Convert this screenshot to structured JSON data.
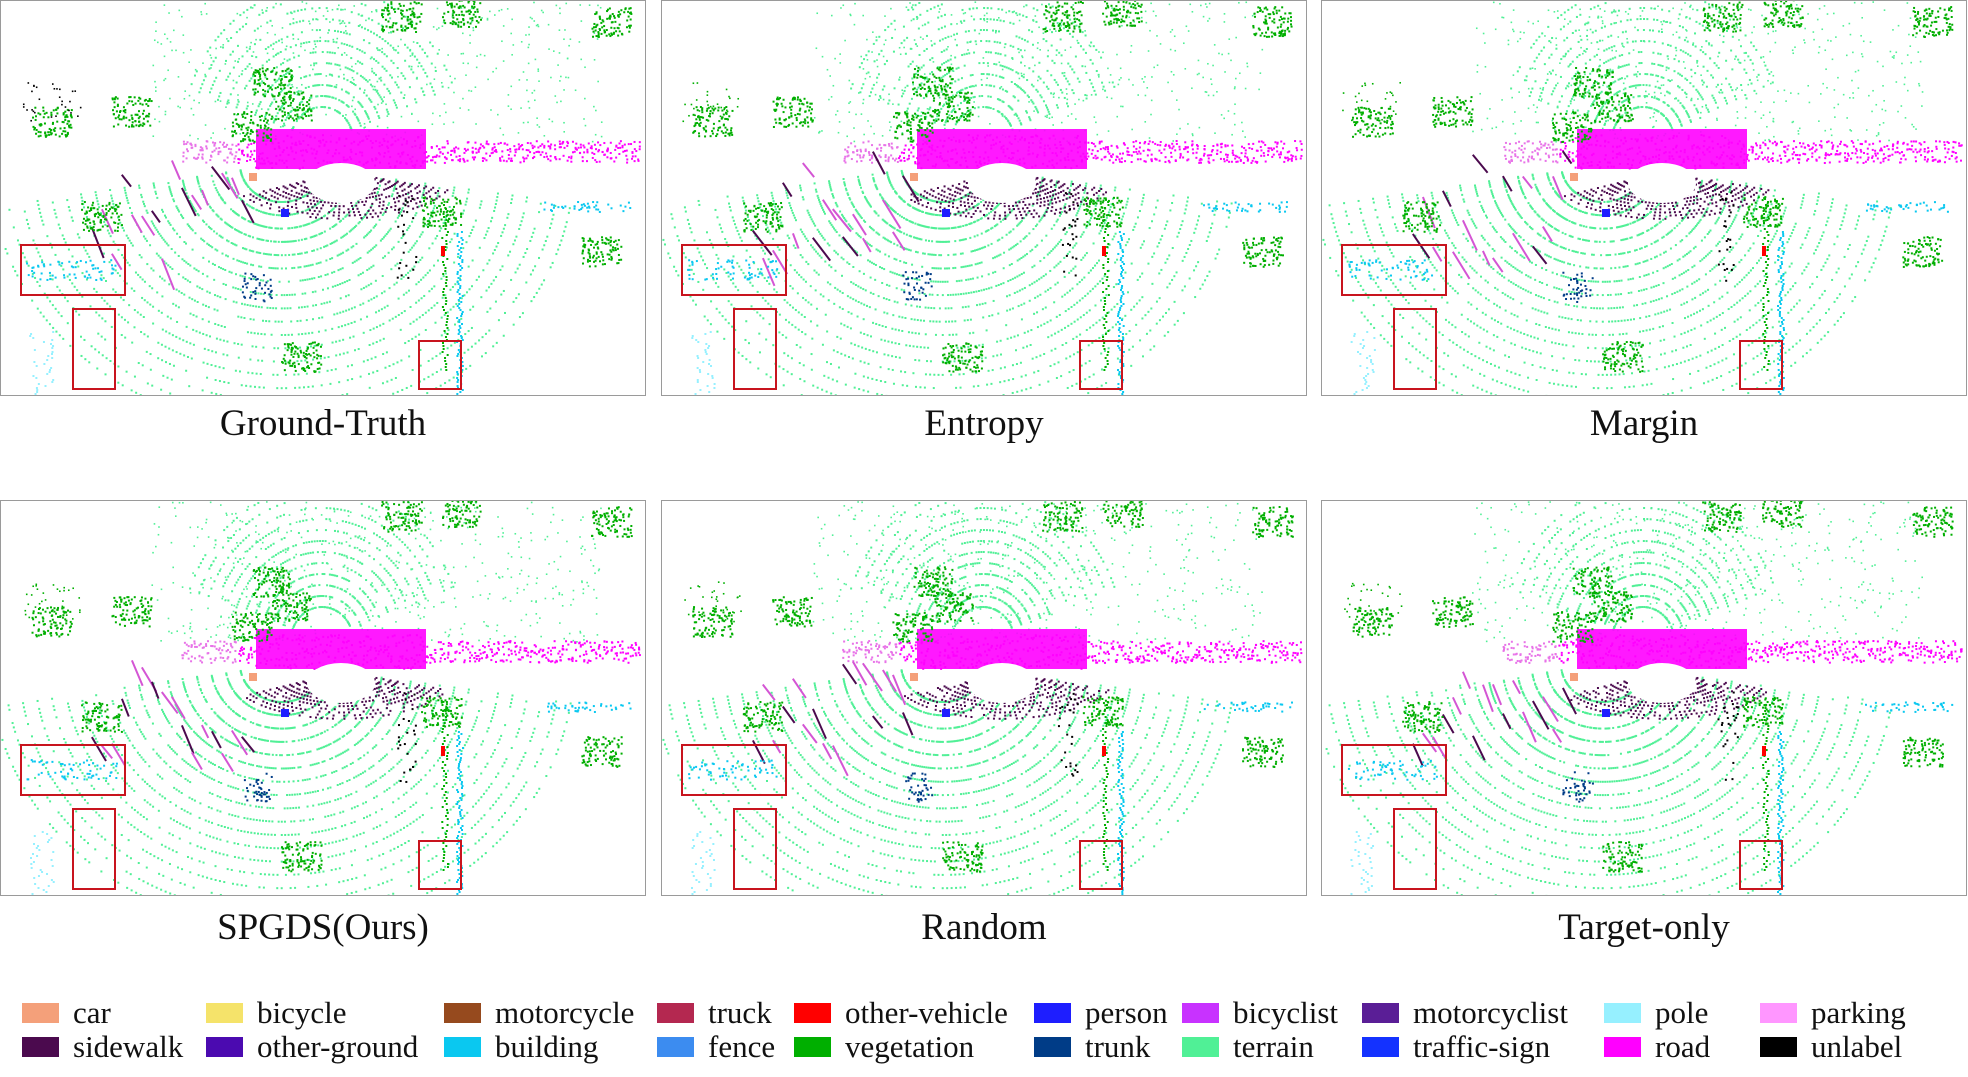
{
  "panels": [
    {
      "caption": "Ground-Truth",
      "variant": 0
    },
    {
      "caption": "Entropy",
      "variant": 1
    },
    {
      "caption": "Margin",
      "variant": 2
    },
    {
      "caption": "SPGDS(Ours)",
      "variant": 3
    },
    {
      "caption": "Random",
      "variant": 4
    },
    {
      "caption": "Target-only",
      "variant": 5
    }
  ],
  "legend": [
    {
      "label": "car",
      "color": "#f4a07a"
    },
    {
      "label": "sidewalk",
      "color": "#4b0a4e"
    },
    {
      "label": "bicycle",
      "color": "#f5e36a"
    },
    {
      "label": "other-ground",
      "color": "#4b0ab0"
    },
    {
      "label": "motorcycle",
      "color": "#964a1e"
    },
    {
      "label": "building",
      "color": "#0ac8f0"
    },
    {
      "label": "truck",
      "color": "#b42850"
    },
    {
      "label": "fence",
      "color": "#3c8cf0"
    },
    {
      "label": "other-vehicle",
      "color": "#ff0000"
    },
    {
      "label": "vegetation",
      "color": "#00af00"
    },
    {
      "label": "person",
      "color": "#1e1eff"
    },
    {
      "label": "trunk",
      "color": "#003c87"
    },
    {
      "label": "bicyclist",
      "color": "#c832ff"
    },
    {
      "label": "terrain",
      "color": "#50f096"
    },
    {
      "label": "motorcyclist",
      "color": "#5a1e96"
    },
    {
      "label": "traffic-sign",
      "color": "#1432ff"
    },
    {
      "label": "pole",
      "color": "#96f0ff"
    },
    {
      "label": "road",
      "color": "#ff00ff"
    },
    {
      "label": "parking",
      "color": "#ff96ff"
    },
    {
      "label": "unlabel",
      "color": "#000000"
    }
  ]
}
